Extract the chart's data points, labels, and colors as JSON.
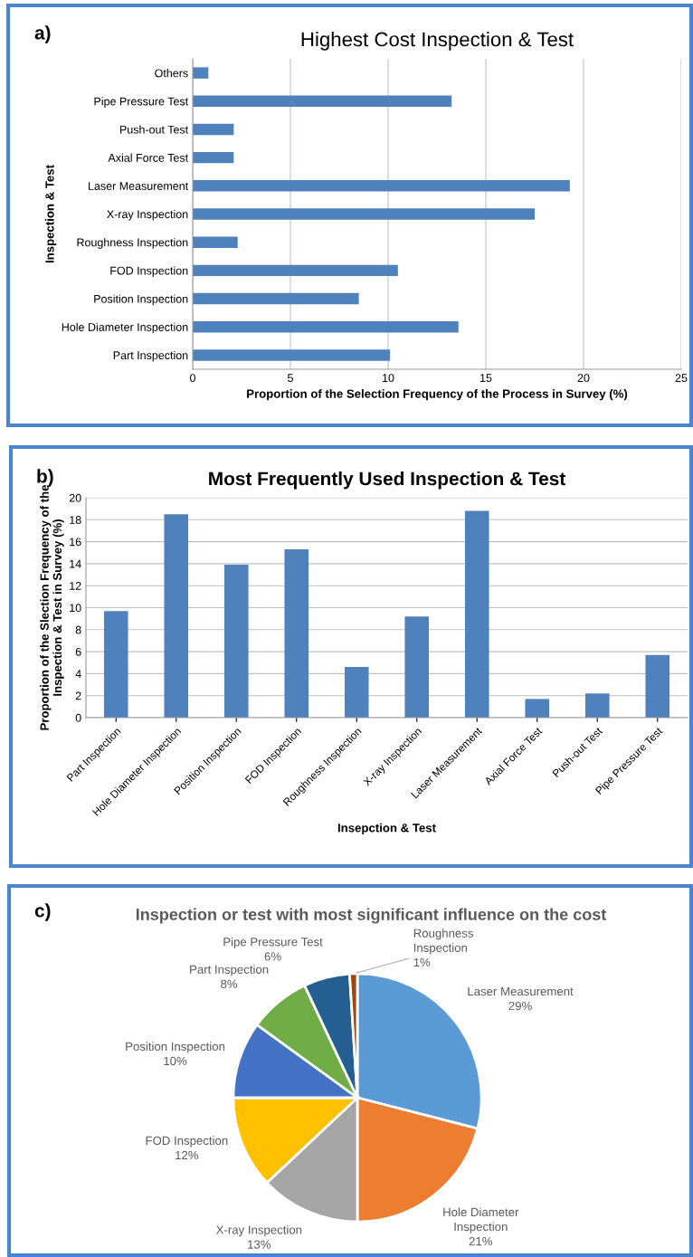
{
  "chart_data": [
    {
      "type": "bar",
      "orientation": "horizontal",
      "title": "Highest Cost Inspection & Test",
      "xlabel": "Proportion of the Selection Frequency of the Process in Survey (%)",
      "ylabel": "Inspection & Test",
      "annotations": [
        "a)"
      ],
      "categories": [
        "Others",
        "Pipe Pressure Test",
        "Push-out Test",
        "Axial Force Test",
        "Laser Measurement",
        "X-ray Inspection",
        "Roughness Inspection",
        "FOD Inspection",
        "Position Inspection",
        "Hole Diameter Inspection",
        "Part Inspection"
      ],
      "values": [
        0.8,
        13.25,
        2.1,
        2.1,
        19.3,
        17.5,
        2.3,
        10.5,
        8.5,
        13.6,
        10.1
      ],
      "color": "#4f81bd",
      "xlim": [
        0,
        25
      ],
      "xticks": [
        0,
        5,
        10,
        15,
        20,
        25
      ],
      "grid": "x"
    },
    {
      "type": "bar",
      "title": "Most Frequently Used Inspection & Test",
      "xlabel": "Insepction & Test",
      "ylabel": "Proportion of the Slection Frequency of the\nInspection & Test in Survey (%)",
      "annotations": [
        "b)"
      ],
      "categories": [
        "Part Inspection",
        "Hole Diameter Inspection",
        "Position Inspection",
        "FOD Inspection",
        "Roughness Inspection",
        "X-ray Inspection",
        "Laser Measurement",
        "Axial Force Test",
        "Push-out Test",
        "Pipe Pressure Test"
      ],
      "values": [
        9.7,
        18.5,
        13.9,
        15.3,
        4.6,
        9.2,
        18.8,
        1.7,
        2.2,
        5.7
      ],
      "color": "#4f81bd",
      "ylim": [
        0,
        20
      ],
      "yticks": [
        0,
        2,
        4,
        6,
        8,
        10,
        12,
        14,
        16,
        18,
        20
      ],
      "grid": "y"
    },
    {
      "type": "pie",
      "title": "Inspection or test with most significant influence on the cost",
      "annotations": [
        "c)"
      ],
      "categories": [
        "Laser Measurement",
        "Hole Diameter Inspection",
        "X-ray Inspection",
        "FOD Inspection",
        "Position Inspection",
        "Part Inspection",
        "Pipe Pressure Test",
        "Roughness Inspection"
      ],
      "values": [
        29,
        21,
        13,
        12,
        10,
        8,
        6,
        1
      ],
      "value_labels": [
        "29%",
        "21%",
        "13%",
        "12%",
        "10%",
        "8%",
        "6%",
        "1%"
      ],
      "colors": [
        "#5b9bd5",
        "#ed7d31",
        "#a5a5a5",
        "#ffc000",
        "#4472c4",
        "#70ad47",
        "#255e91",
        "#9e480e"
      ]
    }
  ]
}
